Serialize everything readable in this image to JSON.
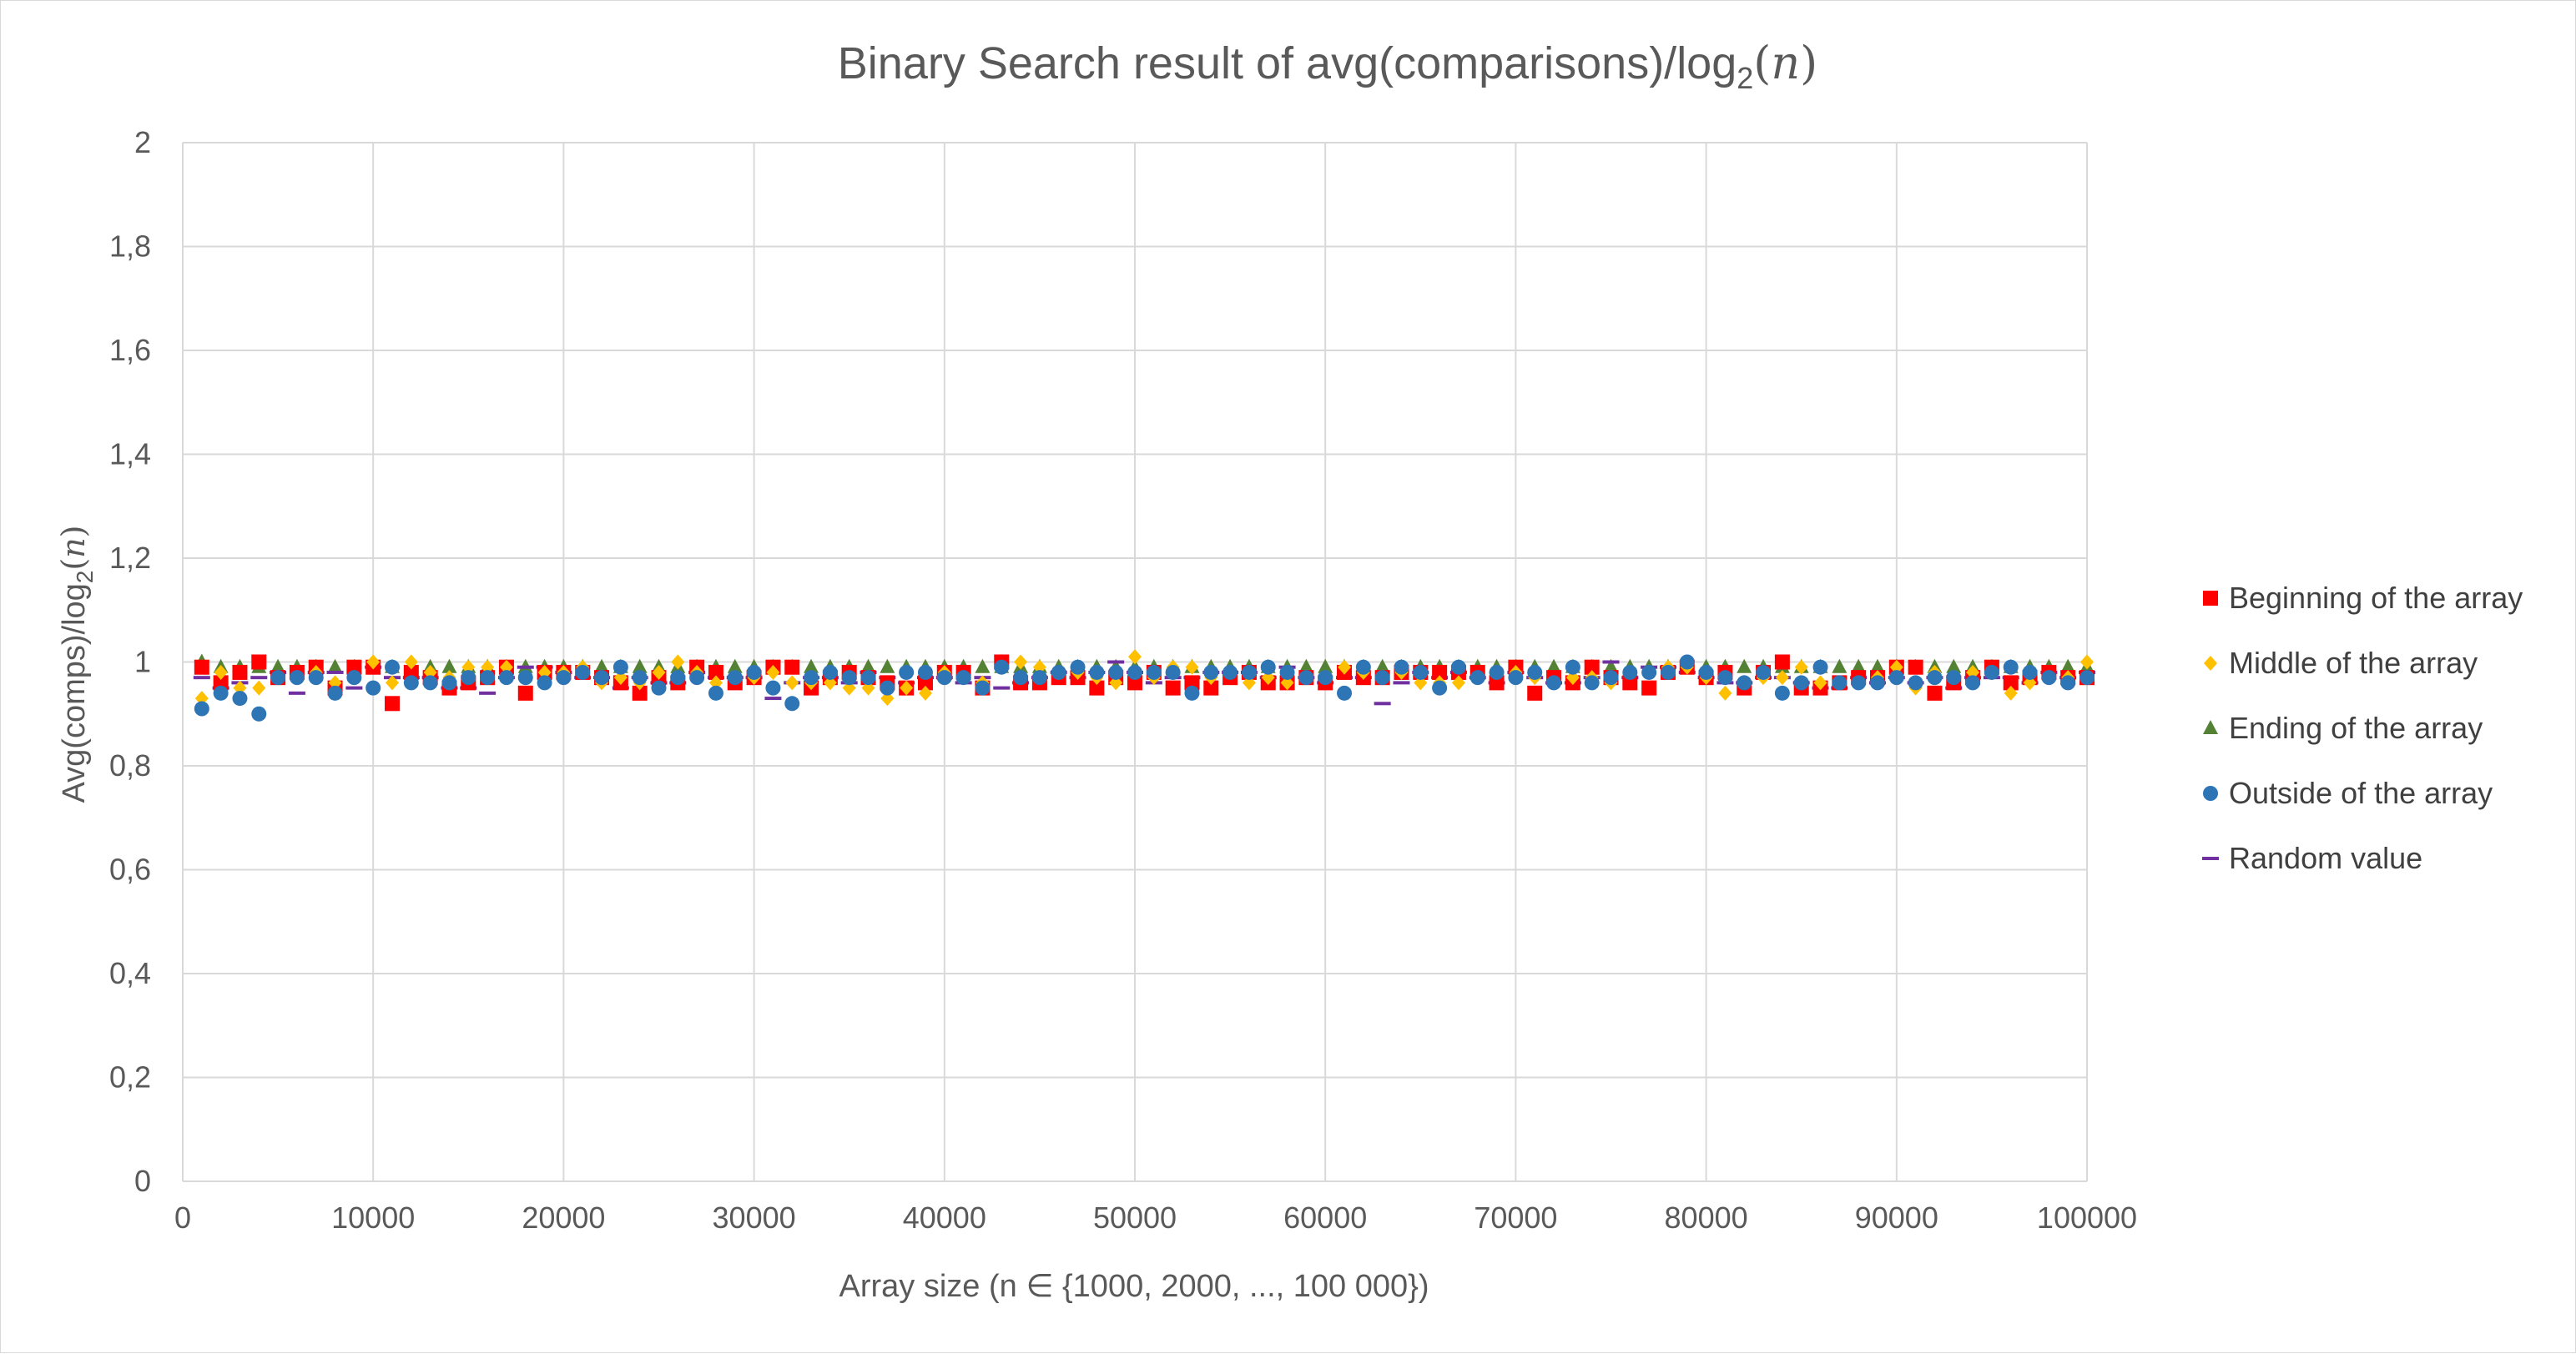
{
  "chart_data": {
    "type": "scatter",
    "title": "Binary Search result of avg(comparisons)/log",
    "title_sub": "2",
    "title_tail": "(",
    "title_var": "n",
    "title_close": ")",
    "xlabel": "Array size (n ∈ {1000, 2000, ..., 100 000})",
    "ylabel": "Avg(comps)/log",
    "ylabel_sub": "2",
    "ylabel_tail": "(",
    "ylabel_var": "n",
    "ylabel_close": ")",
    "xlim": [
      0,
      100000
    ],
    "ylim": [
      0,
      2
    ],
    "x_ticks": [
      "0",
      "10000",
      "20000",
      "30000",
      "40000",
      "50000",
      "60000",
      "70000",
      "80000",
      "90000",
      "100000"
    ],
    "y_ticks": [
      "0",
      "0,2",
      "0,4",
      "0,6",
      "0,8",
      "1",
      "1,2",
      "1,4",
      "1,6",
      "1,8",
      "2"
    ],
    "grid": true,
    "legend_position": "right",
    "x": [
      1000,
      2000,
      3000,
      4000,
      5000,
      6000,
      7000,
      8000,
      9000,
      10000,
      11000,
      12000,
      13000,
      14000,
      15000,
      16000,
      17000,
      18000,
      19000,
      20000,
      21000,
      22000,
      23000,
      24000,
      25000,
      26000,
      27000,
      28000,
      29000,
      30000,
      31000,
      32000,
      33000,
      34000,
      35000,
      36000,
      37000,
      38000,
      39000,
      40000,
      41000,
      42000,
      43000,
      44000,
      45000,
      46000,
      47000,
      48000,
      49000,
      50000,
      51000,
      52000,
      53000,
      54000,
      55000,
      56000,
      57000,
      58000,
      59000,
      60000,
      61000,
      62000,
      63000,
      64000,
      65000,
      66000,
      67000,
      68000,
      69000,
      70000,
      71000,
      72000,
      73000,
      74000,
      75000,
      76000,
      77000,
      78000,
      79000,
      80000,
      81000,
      82000,
      83000,
      84000,
      85000,
      86000,
      87000,
      88000,
      89000,
      90000,
      91000,
      92000,
      93000,
      94000,
      95000,
      96000,
      97000,
      98000,
      99000,
      100000
    ],
    "series": [
      {
        "name": "Beginning of the array",
        "color": "#ff0000",
        "marker": "square",
        "values": [
          0.99,
          0.96,
          0.98,
          1.0,
          0.97,
          0.98,
          0.99,
          0.95,
          0.99,
          0.99,
          0.92,
          0.98,
          0.97,
          0.95,
          0.96,
          0.97,
          0.99,
          0.94,
          0.98,
          0.98,
          0.98,
          0.97,
          0.96,
          0.94,
          0.97,
          0.96,
          0.99,
          0.98,
          0.96,
          0.97,
          0.99,
          0.99,
          0.95,
          0.97,
          0.98,
          0.97,
          0.96,
          0.95,
          0.96,
          0.98,
          0.98,
          0.95,
          1.0,
          0.96,
          0.96,
          0.97,
          0.97,
          0.95,
          0.97,
          0.96,
          0.98,
          0.95,
          0.96,
          0.95,
          0.97,
          0.98,
          0.96,
          0.96,
          0.97,
          0.96,
          0.98,
          0.97,
          0.97,
          0.98,
          0.98,
          0.98,
          0.98,
          0.98,
          0.96,
          0.99,
          0.94,
          0.97,
          0.96,
          0.99,
          0.97,
          0.96,
          0.95,
          0.98,
          0.99,
          0.97,
          0.98,
          0.95,
          0.98,
          1.0,
          0.95,
          0.95,
          0.96,
          0.97,
          0.97,
          0.99,
          0.99,
          0.94,
          0.96,
          0.97,
          0.99,
          0.96,
          0.97,
          0.98,
          0.97,
          0.97
        ]
      },
      {
        "name": "Middle of the array",
        "color": "#ffc000",
        "marker": "diamond",
        "values": [
          0.93,
          0.98,
          0.95,
          0.95,
          0.97,
          0.97,
          0.98,
          0.96,
          0.97,
          1.0,
          0.96,
          1.0,
          0.98,
          0.97,
          0.99,
          0.99,
          0.99,
          0.97,
          0.98,
          0.98,
          0.99,
          0.96,
          0.97,
          0.96,
          0.98,
          1.0,
          0.98,
          0.96,
          0.97,
          0.97,
          0.98,
          0.96,
          0.96,
          0.96,
          0.95,
          0.95,
          0.93,
          0.95,
          0.94,
          0.98,
          0.97,
          0.96,
          0.99,
          1.0,
          0.99,
          0.98,
          0.98,
          0.97,
          0.96,
          1.01,
          0.97,
          0.99,
          0.99,
          0.97,
          0.98,
          0.96,
          0.97,
          0.96,
          0.97,
          0.97,
          0.99,
          0.98,
          0.97,
          0.98,
          0.96,
          0.96,
          0.96,
          0.97,
          0.98,
          0.98,
          0.97,
          0.96,
          0.97,
          0.97,
          0.96,
          0.98,
          0.98,
          0.99,
          0.99,
          0.97,
          0.94,
          0.96,
          0.97,
          0.97,
          0.99,
          0.96,
          0.96,
          0.96,
          0.97,
          0.99,
          0.95,
          0.98,
          0.97,
          0.98,
          0.98,
          0.94,
          0.96,
          0.97,
          0.97,
          1.0
        ]
      },
      {
        "name": "Ending of the array",
        "color": "#548235",
        "marker": "triangle",
        "values": [
          1.0,
          0.99,
          0.99,
          0.99,
          0.99,
          0.99,
          0.99,
          0.99,
          0.99,
          0.99,
          0.99,
          0.99,
          0.99,
          0.99,
          0.99,
          0.99,
          0.99,
          0.99,
          0.99,
          0.99,
          0.99,
          0.99,
          0.99,
          0.99,
          0.99,
          0.99,
          0.99,
          0.99,
          0.99,
          0.99,
          0.99,
          0.99,
          0.99,
          0.99,
          0.99,
          0.99,
          0.99,
          0.99,
          0.99,
          0.99,
          0.99,
          0.99,
          0.99,
          0.99,
          0.99,
          0.99,
          0.99,
          0.99,
          0.99,
          0.99,
          0.99,
          0.99,
          0.99,
          0.99,
          0.99,
          0.99,
          0.99,
          0.99,
          0.99,
          0.99,
          0.99,
          0.99,
          0.99,
          0.99,
          0.99,
          0.99,
          0.99,
          0.99,
          0.99,
          0.99,
          0.99,
          0.99,
          0.99,
          0.99,
          0.99,
          0.99,
          0.99,
          0.99,
          0.99,
          0.99,
          0.99,
          0.99,
          0.99,
          0.99,
          0.99,
          0.99,
          0.99,
          0.99,
          0.99,
          0.99,
          0.99,
          0.99,
          0.99,
          0.99,
          0.99,
          0.99,
          0.99,
          0.99,
          0.99,
          0.99
        ]
      },
      {
        "name": "Outside of the array",
        "color": "#2e75b6",
        "marker": "circle",
        "values": [
          0.91,
          0.94,
          0.93,
          0.9,
          0.97,
          0.97,
          0.97,
          0.94,
          0.97,
          0.95,
          0.99,
          0.96,
          0.96,
          0.96,
          0.97,
          0.97,
          0.97,
          0.97,
          0.96,
          0.97,
          0.98,
          0.97,
          0.99,
          0.97,
          0.95,
          0.97,
          0.97,
          0.94,
          0.97,
          0.98,
          0.95,
          0.92,
          0.97,
          0.98,
          0.97,
          0.97,
          0.95,
          0.98,
          0.98,
          0.97,
          0.97,
          0.95,
          0.99,
          0.97,
          0.97,
          0.98,
          0.99,
          0.98,
          0.98,
          0.98,
          0.98,
          0.98,
          0.94,
          0.98,
          0.98,
          0.98,
          0.99,
          0.98,
          0.97,
          0.97,
          0.94,
          0.99,
          0.97,
          0.99,
          0.98,
          0.95,
          0.99,
          0.97,
          0.98,
          0.97,
          0.98,
          0.96,
          0.99,
          0.96,
          0.97,
          0.98,
          0.98,
          0.98,
          1.0,
          0.98,
          0.97,
          0.96,
          0.98,
          0.94,
          0.96,
          0.99,
          0.96,
          0.96,
          0.96,
          0.97,
          0.96,
          0.97,
          0.97,
          0.96,
          0.98,
          0.99,
          0.98,
          0.97,
          0.96,
          0.97
        ]
      },
      {
        "name": "Random value",
        "color": "#7030a0",
        "marker": "dash",
        "values": [
          0.97,
          0.95,
          0.96,
          0.97,
          0.98,
          0.94,
          0.98,
          0.98,
          0.95,
          0.99,
          0.97,
          0.97,
          0.97,
          0.95,
          0.95,
          0.94,
          0.97,
          0.99,
          0.99,
          0.98,
          0.97,
          0.97,
          0.95,
          0.97,
          0.96,
          0.96,
          0.98,
          0.97,
          0.97,
          0.97,
          0.93,
          0.96,
          0.97,
          0.97,
          0.96,
          0.98,
          0.97,
          0.96,
          0.97,
          0.97,
          0.96,
          0.97,
          0.95,
          0.96,
          0.97,
          0.98,
          0.97,
          0.98,
          1.0,
          0.98,
          0.96,
          0.97,
          0.97,
          0.98,
          0.98,
          0.98,
          0.97,
          0.99,
          0.97,
          0.96,
          0.97,
          0.97,
          0.92,
          0.96,
          0.98,
          0.97,
          0.98,
          0.97,
          0.96,
          0.98,
          0.97,
          0.96,
          0.96,
          0.97,
          1.0,
          0.97,
          0.99,
          0.99,
          0.98,
          0.97,
          0.96,
          0.96,
          0.97,
          0.97,
          0.96,
          0.95,
          0.95,
          0.97,
          0.96,
          0.97,
          0.96,
          0.97,
          0.95,
          0.97,
          0.97,
          0.97,
          0.96,
          0.98,
          0.97,
          0.98
        ]
      }
    ]
  }
}
